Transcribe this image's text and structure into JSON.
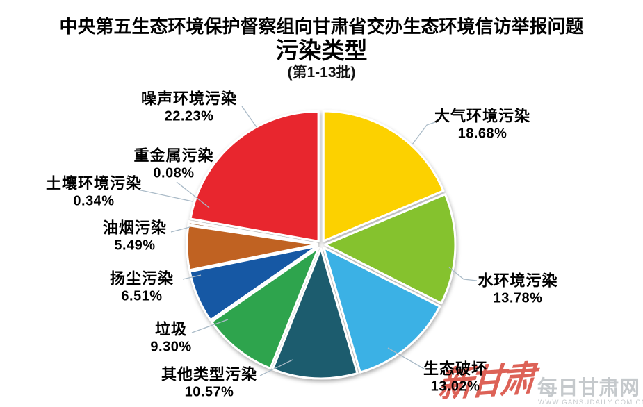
{
  "title": {
    "line1": "中央第五生态环境保护督察组向甘肃省交办生态环境信访举报问题",
    "line2": "污染类型",
    "line3": "(第1-13批)"
  },
  "chart_data": {
    "type": "pie",
    "title": "污染类型",
    "subtitle": "(第1-13批)",
    "unit": "percent",
    "start_angle_deg": 0,
    "direction": "clockwise",
    "label_format": "category name above percent value",
    "exploded": true,
    "legend": "none (labels with leader lines around pie)",
    "slices": [
      {
        "id": "atmospheric",
        "label": "大气环境污染",
        "value": 18.68,
        "display": "18.68%",
        "color": "#FCD103"
      },
      {
        "id": "water",
        "label": "水环境污染",
        "value": 13.78,
        "display": "13.78%",
        "color": "#85C22D"
      },
      {
        "id": "eco-damage",
        "label": "生态破坏",
        "value": 13.02,
        "display": "13.02%",
        "color": "#3BB1E5"
      },
      {
        "id": "other-types",
        "label": "其他类型污染",
        "value": 10.57,
        "display": "10.57%",
        "color": "#1E5B6E"
      },
      {
        "id": "garbage",
        "label": "垃圾",
        "value": 9.3,
        "display": "9.30%",
        "color": "#2FA44E"
      },
      {
        "id": "dust",
        "label": "扬尘污染",
        "value": 6.51,
        "display": "6.51%",
        "color": "#1459A4"
      },
      {
        "id": "cooking-fume",
        "label": "油烟污染",
        "value": 5.49,
        "display": "5.49%",
        "color": "#C06220"
      },
      {
        "id": "soil",
        "label": "土壤环境污染",
        "value": 0.34,
        "display": "0.34%",
        "color": "#9C5A28"
      },
      {
        "id": "heavy-metal",
        "label": "重金属污染",
        "value": 0.08,
        "display": "0.08%",
        "color": "#8A3033"
      },
      {
        "id": "noise",
        "label": "噪声环境污染",
        "value": 22.23,
        "display": "22.23%",
        "color": "#E8282D"
      }
    ],
    "leader_line_color": "#A9BAC7",
    "slice_border_color": "#FFFFFF"
  },
  "footer": {
    "logo_text": "新甘肃",
    "logo_color": "#DB574B",
    "site_name": "每日甘肃网",
    "site_url": "WWW.GANSUDAILY.COM.CN",
    "site_color": "#C5C9CC"
  }
}
